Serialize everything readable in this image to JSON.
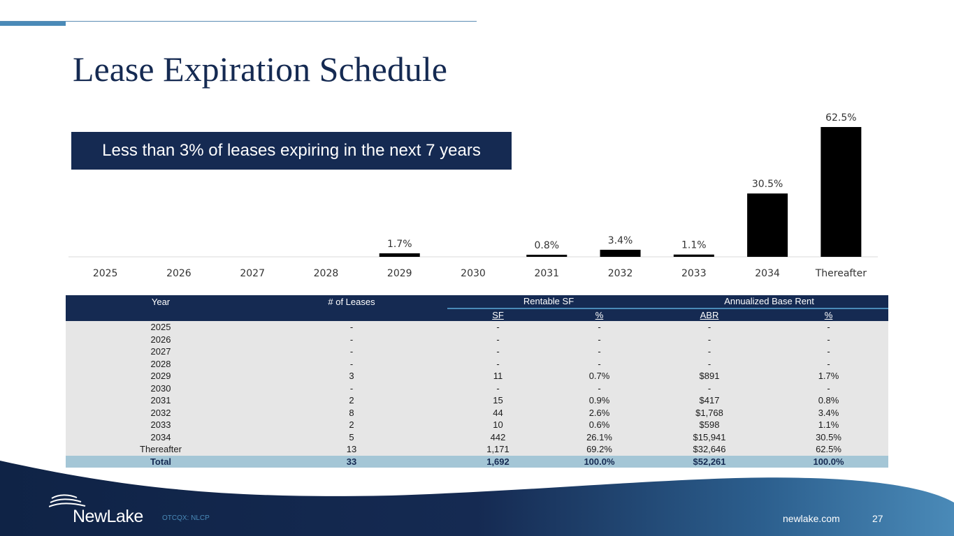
{
  "title": "Lease Expiration Schedule",
  "callout": "Less than 3% of leases expiring in the next 7 years",
  "chart_data": {
    "type": "bar",
    "categories": [
      "2025",
      "2026",
      "2027",
      "2028",
      "2029",
      "2030",
      "2031",
      "2032",
      "2033",
      "2034",
      "Thereafter"
    ],
    "values": [
      0,
      0,
      0,
      0,
      1.7,
      0,
      0.8,
      3.4,
      1.1,
      30.5,
      62.5
    ],
    "labels": [
      "",
      "",
      "",
      "",
      "1.7%",
      "",
      "0.8%",
      "3.4%",
      "1.1%",
      "30.5%",
      "62.5%"
    ],
    "ylim": [
      0,
      62.5
    ],
    "grid": false,
    "bar_color": "#000000"
  },
  "table": {
    "headers": {
      "year": "Year",
      "leases": "# of Leases",
      "rentable_sf": "Rentable SF",
      "abr_group": "Annualized Base Rent",
      "sf": "SF",
      "sf_pct": "%",
      "abr": "ABR",
      "abr_pct": "%"
    },
    "rows": [
      [
        "2025",
        "-",
        "-",
        "-",
        "-",
        "-"
      ],
      [
        "2026",
        "-",
        "-",
        "-",
        "-",
        "-"
      ],
      [
        "2027",
        "-",
        "-",
        "-",
        "-",
        "-"
      ],
      [
        "2028",
        "-",
        "-",
        "-",
        "-",
        "-"
      ],
      [
        "2029",
        "3",
        "11",
        "0.7%",
        "$891",
        "1.7%"
      ],
      [
        "2030",
        "-",
        "-",
        "-",
        "-",
        "-"
      ],
      [
        "2031",
        "2",
        "15",
        "0.9%",
        "$417",
        "0.8%"
      ],
      [
        "2032",
        "8",
        "44",
        "2.6%",
        "$1,768",
        "3.4%"
      ],
      [
        "2033",
        "2",
        "10",
        "0.6%",
        "$598",
        "1.1%"
      ],
      [
        "2034",
        "5",
        "442",
        "26.1%",
        "$15,941",
        "30.5%"
      ],
      [
        "Thereafter",
        "13",
        "1,171",
        "69.2%",
        "$32,646",
        "62.5%"
      ]
    ],
    "total": [
      "Total",
      "33",
      "1,692",
      "100.0%",
      "$52,261",
      "100.0%"
    ]
  },
  "footer": {
    "logo_text": "NewLake",
    "ticker": "OTCQX: NLCP",
    "website": "newlake.com",
    "page_number": "27"
  },
  "colors": {
    "navy": "#152a52",
    "accent_blue": "#4a8ab8",
    "total_row": "#a4c6d6",
    "row_bg": "#e6e6e6"
  }
}
